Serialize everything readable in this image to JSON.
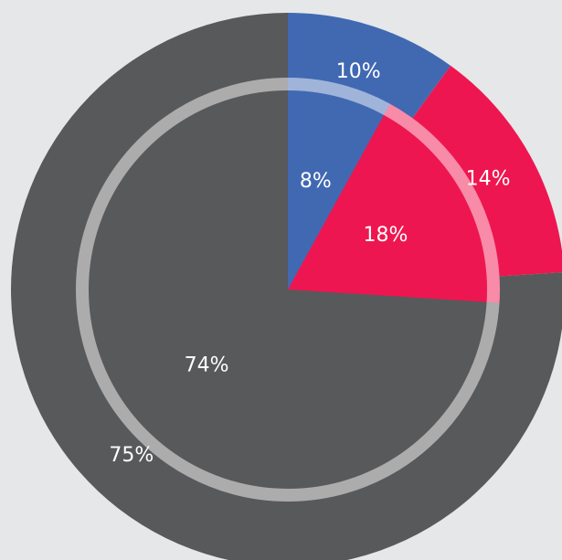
{
  "chart_data": {
    "type": "nested-pie",
    "colors": [
      "#4169b2",
      "#ee1650",
      "#58595b"
    ],
    "rings": [
      {
        "values": [
          10,
          14,
          75
        ],
        "value_labels": [
          "10%",
          "14%",
          "75%"
        ]
      },
      {
        "values": [
          8,
          18,
          74
        ],
        "value_labels": [
          "8%",
          "18%",
          "74%"
        ]
      }
    ]
  }
}
